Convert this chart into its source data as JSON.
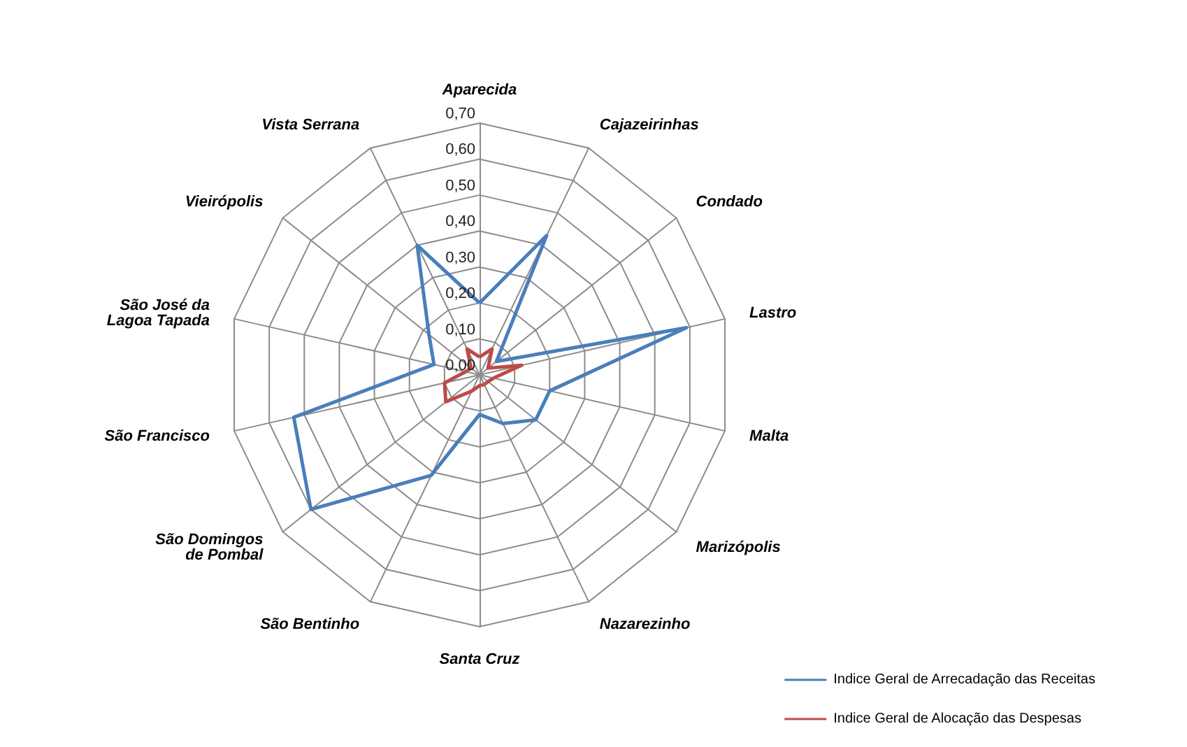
{
  "chart_data": {
    "type": "radar",
    "categories": [
      "Aparecida",
      "Cajazeirinhas",
      "Condado",
      "Lastro",
      "Malta",
      "Marizópolis",
      "Nazarezinho",
      "Santa Cruz",
      "São Bentinho",
      "São Domingos de Pombal",
      "São Francisco",
      "São José da Lagoa Tapada",
      "Vieirópolis",
      "Vista Serrana"
    ],
    "series": [
      {
        "name": "Indice Geral de Arrecadação das Receitas",
        "color": "#4a7ebb",
        "values": [
          0.2,
          0.43,
          0.06,
          0.59,
          0.2,
          0.2,
          0.15,
          0.11,
          0.31,
          0.6,
          0.53,
          0.13,
          0.18,
          0.4
        ]
      },
      {
        "name": "Indice Geral de Alocação das Despesas",
        "color": "#be4b48",
        "values": [
          0.05,
          0.08,
          0.03,
          0.12,
          0.04,
          0.03,
          0.03,
          0.03,
          0.05,
          0.12,
          0.1,
          0.04,
          0.03,
          0.08
        ]
      }
    ],
    "ylim": [
      0,
      0.7
    ],
    "yticks": [
      {
        "value": 0,
        "label": "0,00"
      },
      {
        "value": 0.1,
        "label": "0,10"
      },
      {
        "value": 0.2,
        "label": "0,20"
      },
      {
        "value": 0.3,
        "label": "0,30"
      },
      {
        "value": 0.4,
        "label": "0,40"
      },
      {
        "value": 0.5,
        "label": "0,50"
      },
      {
        "value": 0.6,
        "label": "0,60"
      },
      {
        "value": 0.7,
        "label": "0,70"
      }
    ],
    "grid": true,
    "legend": "bottom right",
    "marker": "none",
    "line_style": "solid"
  }
}
